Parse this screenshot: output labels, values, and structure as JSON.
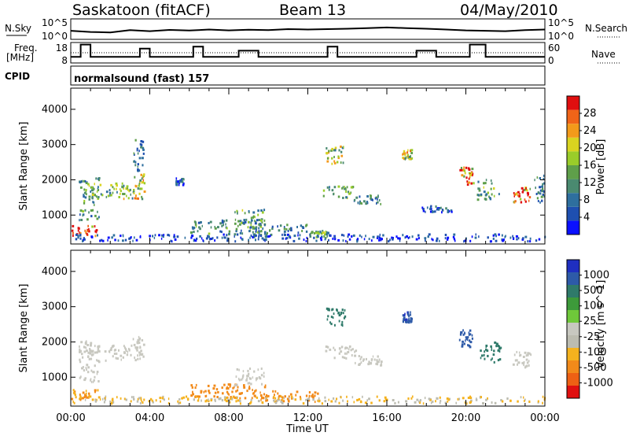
{
  "header": {
    "station": "Saskatoon (fitACF)",
    "beam": "Beam 13",
    "date": "04/May/2010"
  },
  "noise_panel": {
    "left_label": "N.Sky",
    "left_ticks": [
      "10^5",
      "10^0"
    ],
    "right_ticks": [
      "10^5",
      "10^0"
    ],
    "right_label": "N.Search"
  },
  "freq_panel": {
    "left_label_1": "Freq.",
    "left_label_2": "[MHz]",
    "left_ticks": [
      "18",
      "8"
    ],
    "right_ticks": [
      "60",
      "0"
    ],
    "right_label": "Nave"
  },
  "cpid": {
    "label": "CPID",
    "text": "normalsound (fast) 157"
  },
  "colors": {
    "power": [
      "#0a10ff",
      "#1e4fb0",
      "#2e6f9e",
      "#4a8a70",
      "#5f9f4a",
      "#9acc2a",
      "#d9d420",
      "#f39a1a",
      "#f06418",
      "#e00f0f"
    ],
    "velocity": [
      "#1f2fc0",
      "#2d5aa8",
      "#2f7a6a",
      "#3d9a3a",
      "#6fc83a",
      "#c8c8c0",
      "#bcbcb0",
      "#f5b21e",
      "#f28a1a",
      "#ee6014",
      "#e01010"
    ]
  },
  "chart_data": [
    {
      "type": "heatmap",
      "title": "Power",
      "xlabel": "Time UT",
      "ylabel": "Slant Range [km]",
      "x_ticks": [
        "00:00",
        "04:00",
        "08:00",
        "12:00",
        "16:00",
        "20:00",
        "00:00"
      ],
      "y_ticks": [
        "1000",
        "2000",
        "3000",
        "4000"
      ],
      "ylim": [
        180,
        4600
      ],
      "colorbar_label": "Power [dB]",
      "colorbar_ticks": [
        "4",
        "8",
        "12",
        "16",
        "20",
        "24",
        "28"
      ],
      "clim": [
        0,
        30
      ],
      "regions": [
        {
          "t": 0.6,
          "r": 550,
          "w": 1.5,
          "h": 320,
          "v": 26
        },
        {
          "t": 0.9,
          "r": 1450,
          "w": 1.0,
          "h": 1200,
          "v": 10
        },
        {
          "t": 2.0,
          "r": 1680,
          "w": 2.2,
          "h": 450,
          "v": 14
        },
        {
          "t": 3.4,
          "r": 1800,
          "w": 0.6,
          "h": 700,
          "v": 18
        },
        {
          "t": 3.4,
          "r": 2700,
          "w": 0.5,
          "h": 900,
          "v": 8
        },
        {
          "t": 5.5,
          "r": 1950,
          "w": 0.4,
          "h": 200,
          "v": 6
        },
        {
          "t": 8.0,
          "r": 650,
          "w": 4.0,
          "h": 400,
          "v": 10
        },
        {
          "t": 9.0,
          "r": 900,
          "w": 1.5,
          "h": 500,
          "v": 12
        },
        {
          "t": 10.5,
          "r": 550,
          "w": 3.0,
          "h": 350,
          "v": 9
        },
        {
          "t": 12.5,
          "r": 450,
          "w": 1.0,
          "h": 200,
          "v": 12
        },
        {
          "t": 13.4,
          "r": 2700,
          "w": 1.0,
          "h": 500,
          "v": 16
        },
        {
          "t": 13.5,
          "r": 1650,
          "w": 1.5,
          "h": 350,
          "v": 14
        },
        {
          "t": 15.0,
          "r": 1450,
          "w": 1.4,
          "h": 300,
          "v": 9
        },
        {
          "t": 17.0,
          "r": 2700,
          "w": 0.5,
          "h": 300,
          "v": 18
        },
        {
          "t": 18.5,
          "r": 1150,
          "w": 1.5,
          "h": 200,
          "v": 6
        },
        {
          "t": 20.0,
          "r": 2100,
          "w": 0.7,
          "h": 500,
          "v": 24
        },
        {
          "t": 21.1,
          "r": 1700,
          "w": 1.1,
          "h": 600,
          "v": 13
        },
        {
          "t": 22.8,
          "r": 1600,
          "w": 0.9,
          "h": 500,
          "v": 22
        },
        {
          "t": 23.7,
          "r": 1750,
          "w": 0.5,
          "h": 800,
          "v": 8
        },
        {
          "t": 12.0,
          "r": 350,
          "w": 24.0,
          "h": 200,
          "v": 4
        }
      ]
    },
    {
      "type": "heatmap",
      "title": "Velocity",
      "xlabel": "Time UT",
      "ylabel": "Slant Range [km]",
      "x_ticks": [
        "00:00",
        "04:00",
        "08:00",
        "12:00",
        "16:00",
        "20:00",
        "00:00"
      ],
      "y_ticks": [
        "1000",
        "2000",
        "3000",
        "4000"
      ],
      "ylim": [
        180,
        4600
      ],
      "colorbar_label": "Velocity [m s^-1]",
      "colorbar_ticks": [
        "1000",
        "500",
        "100",
        "25",
        "-25",
        "-100",
        "-500",
        "-1000"
      ],
      "regions": [
        {
          "t": 0.6,
          "r": 500,
          "w": 1.5,
          "h": 300,
          "v": -100
        },
        {
          "t": 0.9,
          "r": 1450,
          "w": 1.0,
          "h": 1200,
          "v": 0
        },
        {
          "t": 2.0,
          "r": 1680,
          "w": 2.2,
          "h": 450,
          "v": 0
        },
        {
          "t": 3.4,
          "r": 1800,
          "w": 0.6,
          "h": 700,
          "v": 0
        },
        {
          "t": 8.0,
          "r": 600,
          "w": 4.0,
          "h": 400,
          "v": -150
        },
        {
          "t": 9.0,
          "r": 1000,
          "w": 1.5,
          "h": 500,
          "v": 0
        },
        {
          "t": 11.0,
          "r": 450,
          "w": 3.0,
          "h": 300,
          "v": -200
        },
        {
          "t": 13.4,
          "r": 2700,
          "w": 1.0,
          "h": 500,
          "v": 100
        },
        {
          "t": 13.6,
          "r": 1700,
          "w": 1.6,
          "h": 350,
          "v": 0
        },
        {
          "t": 15.0,
          "r": 1450,
          "w": 1.4,
          "h": 300,
          "v": 0
        },
        {
          "t": 17.0,
          "r": 2700,
          "w": 0.5,
          "h": 300,
          "v": 600
        },
        {
          "t": 20.0,
          "r": 2100,
          "w": 0.7,
          "h": 500,
          "v": 500
        },
        {
          "t": 21.2,
          "r": 1700,
          "w": 1.1,
          "h": 600,
          "v": 200
        },
        {
          "t": 22.8,
          "r": 1500,
          "w": 0.9,
          "h": 500,
          "v": 0
        },
        {
          "t": 12.0,
          "r": 350,
          "w": 24.0,
          "h": 200,
          "v": -60
        }
      ]
    }
  ],
  "time_series": {
    "noise": [
      0.42,
      0.36,
      0.34,
      0.45,
      0.4,
      0.46,
      0.43,
      0.48,
      0.44,
      0.47,
      0.45,
      0.5,
      0.48,
      0.5,
      0.52,
      0.55,
      0.58,
      0.55,
      0.52,
      0.48,
      0.44,
      0.42,
      0.4,
      0.45,
      0.48
    ],
    "freq_steps": [
      {
        "t": 0.0,
        "mhz": 11
      },
      {
        "t": 0.5,
        "mhz": 17
      },
      {
        "t": 1.0,
        "mhz": 11
      },
      {
        "t": 3.5,
        "mhz": 15
      },
      {
        "t": 4.0,
        "mhz": 11
      },
      {
        "t": 6.2,
        "mhz": 16
      },
      {
        "t": 6.7,
        "mhz": 11
      },
      {
        "t": 8.5,
        "mhz": 14
      },
      {
        "t": 9.5,
        "mhz": 11
      },
      {
        "t": 13.0,
        "mhz": 16
      },
      {
        "t": 13.5,
        "mhz": 11
      },
      {
        "t": 17.5,
        "mhz": 14
      },
      {
        "t": 18.5,
        "mhz": 11
      },
      {
        "t": 20.2,
        "mhz": 17
      },
      {
        "t": 21.0,
        "mhz": 11
      },
      {
        "t": 24.0,
        "mhz": 11
      }
    ],
    "nave_level": 30
  }
}
